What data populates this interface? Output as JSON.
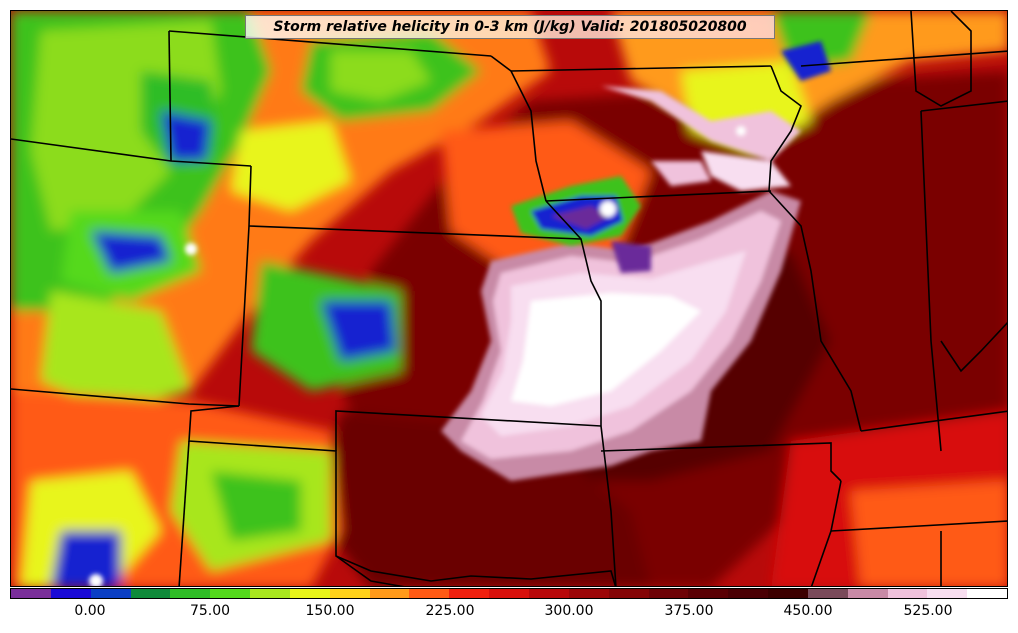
{
  "title": "Storm relative helicity in 0-3 km (J/kg) Valid: 201805020800",
  "colorbar": {
    "tick_labels": [
      "0.00",
      "75.00",
      "150.00",
      "225.00",
      "300.00",
      "375.00",
      "450.00",
      "525.00"
    ],
    "colors": [
      "#7a2e9a",
      "#1a0ad6",
      "#0b3fc4",
      "#0e8a3a",
      "#2ebd26",
      "#54d91c",
      "#a8e61e",
      "#e8f51a",
      "#ffd21a",
      "#ff9a1a",
      "#ff5a14",
      "#f0200e",
      "#d8100c",
      "#b8080a",
      "#9c0608",
      "#840406",
      "#6e0206",
      "#5a0004",
      "#4a0004",
      "#3c0000",
      "#7a4a5a",
      "#c88aa6",
      "#f0c2dc",
      "#f8def0",
      "#ffffff"
    ]
  },
  "map_colors": {
    "background_red": "#b00808",
    "deep_red": "#7a0000",
    "very_deep_red": "#560000",
    "orange": "#ff6a12",
    "yellow": "#f2e21a",
    "green": "#3cc21e",
    "lime": "#8cdc1e",
    "blue": "#1520d0",
    "purple": "#6b2c9a",
    "pink": "#f3c6e4",
    "white": "#ffffff"
  }
}
